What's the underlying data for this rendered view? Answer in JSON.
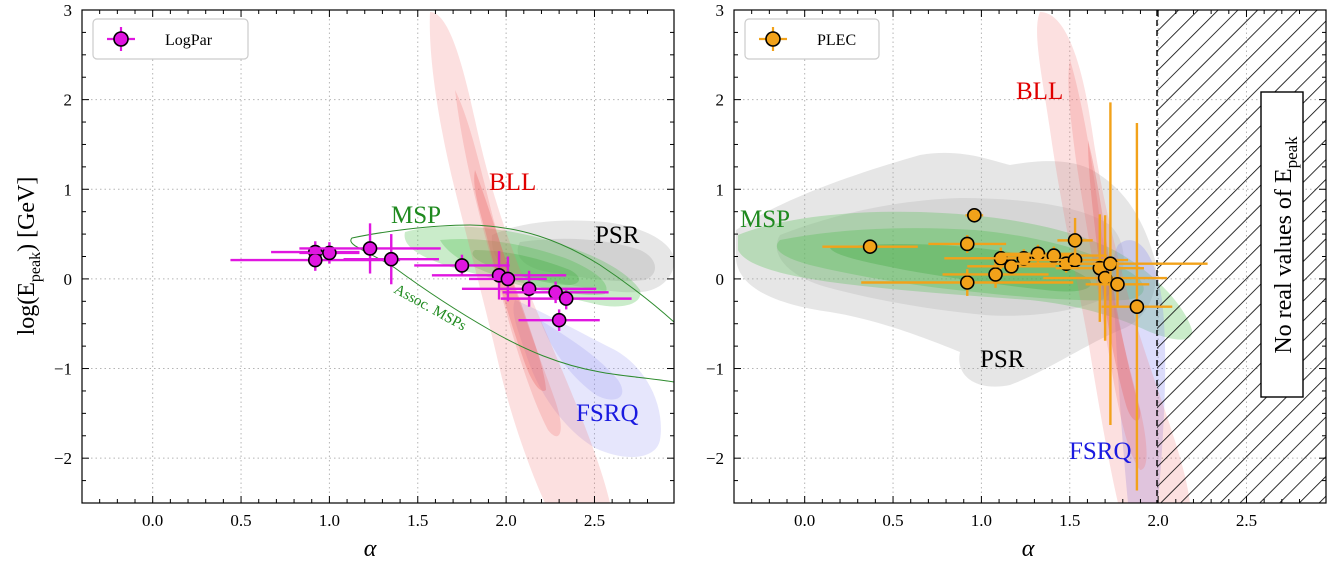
{
  "colors": {
    "logpar_marker": "#e016e0",
    "plec_marker": "#f2a21a",
    "bll": "#f07070",
    "fsrq": "#8c8cf2",
    "msp": "#4fbf4f",
    "msp_text": "#1f8a1f",
    "psr": "#a6a6a6",
    "assoc_msp_line": "#2e8b2e"
  },
  "chart_data": [
    {
      "type": "scatter",
      "xlabel": "α",
      "ylabel": "log(Epeak) [GeV]",
      "xlim": [
        -0.4,
        2.95
      ],
      "ylim": [
        -2.5,
        3
      ],
      "xticks": [
        "0.0",
        "0.5",
        "1.0",
        "1.5",
        "2.0",
        "2.5"
      ],
      "yticks": [
        "−2",
        "−1",
        "0",
        "1",
        "2",
        "3"
      ],
      "grid": true,
      "legend_position": "top-left",
      "series": [
        {
          "name": "LogPar",
          "points": [
            {
              "x": 0.92,
              "y": 0.3,
              "xerr": 0.25,
              "yerr": 0.12
            },
            {
              "x": 0.92,
              "y": 0.21,
              "xerr": 0.48,
              "yerr": 0.12
            },
            {
              "x": 1.0,
              "y": 0.29,
              "xerr": 0.17,
              "yerr": 0.12
            },
            {
              "x": 1.23,
              "y": 0.34,
              "xerr": 0.4,
              "yerr": 0.28
            },
            {
              "x": 1.35,
              "y": 0.22,
              "xerr": 0.27,
              "yerr": 0.28
            },
            {
              "x": 1.75,
              "y": 0.15,
              "xerr": 0.27,
              "yerr": 0.12
            },
            {
              "x": 1.96,
              "y": 0.04,
              "xerr": 0.38,
              "yerr": 0.27
            },
            {
              "x": 2.01,
              "y": 0.0,
              "xerr": 0.22,
              "yerr": 0.25
            },
            {
              "x": 2.13,
              "y": -0.11,
              "xerr": 0.38,
              "yerr": 0.2
            },
            {
              "x": 2.28,
              "y": -0.15,
              "xerr": 0.3,
              "yerr": 0.12
            },
            {
              "x": 2.34,
              "y": -0.22,
              "xerr": 0.37,
              "yerr": 0.12
            },
            {
              "x": 2.3,
              "y": -0.46,
              "xerr": 0.23,
              "yerr": 0.12
            }
          ]
        }
      ],
      "regions": [
        {
          "label": "BLL"
        },
        {
          "label": "MSP"
        },
        {
          "label": "PSR"
        },
        {
          "label": "FSRQ"
        },
        {
          "label": "Assoc. MSPs"
        }
      ]
    },
    {
      "type": "scatter",
      "xlabel": "α",
      "xlim": [
        -0.4,
        2.95
      ],
      "ylim": [
        -2.5,
        3
      ],
      "xticks": [
        "0.0",
        "0.5",
        "1.0",
        "1.5",
        "2.0",
        "2.5"
      ],
      "yticks": [
        "−2",
        "−1",
        "0",
        "1",
        "2",
        "3"
      ],
      "grid": true,
      "legend_position": "top-left",
      "series": [
        {
          "name": "PLEC",
          "points": [
            {
              "x": 0.37,
              "y": 0.36,
              "xerr": 0.27,
              "yerr": 0.06
            },
            {
              "x": 0.92,
              "y": 0.39,
              "xerr": 0.22,
              "yerr": 0.1
            },
            {
              "x": 0.92,
              "y": -0.04,
              "xerr": 0.6,
              "yerr": 0.15
            },
            {
              "x": 0.96,
              "y": 0.71,
              "xerr": 0.05,
              "yerr": 0.08
            },
            {
              "x": 1.08,
              "y": 0.05,
              "xerr": 0.3,
              "yerr": 0.15
            },
            {
              "x": 1.11,
              "y": 0.23,
              "xerr": 0.32,
              "yerr": 0.12
            },
            {
              "x": 1.17,
              "y": 0.14,
              "xerr": 0.25,
              "yerr": 0.1
            },
            {
              "x": 1.24,
              "y": 0.23,
              "xerr": 0.3,
              "yerr": 0.1
            },
            {
              "x": 1.32,
              "y": 0.28,
              "xerr": 0.22,
              "yerr": 0.1
            },
            {
              "x": 1.41,
              "y": 0.26,
              "xerr": 0.3,
              "yerr": 0.1
            },
            {
              "x": 1.48,
              "y": 0.17,
              "xerr": 0.25,
              "yerr": 0.1
            },
            {
              "x": 1.53,
              "y": 0.21,
              "xerr": 0.3,
              "yerr": 0.1
            },
            {
              "x": 1.53,
              "y": 0.43,
              "xerr": 0.1,
              "yerr": 0.25
            },
            {
              "x": 1.67,
              "y": 0.12,
              "xerr": 0.25,
              "yerr": 0.6
            },
            {
              "x": 1.7,
              "y": 0.01,
              "xerr": 0.35,
              "yerr": 0.7
            },
            {
              "x": 1.73,
              "y": 0.17,
              "xerr": 0.55,
              "yerr": 1.8
            },
            {
              "x": 1.77,
              "y": -0.06,
              "xerr": 0.18,
              "yerr": 0.25
            },
            {
              "x": 1.88,
              "y": -0.31,
              "xerr": 0.2,
              "yerr": 2.05
            }
          ]
        }
      ],
      "regions": [
        {
          "label": "BLL"
        },
        {
          "label": "MSP"
        },
        {
          "label": "PSR"
        },
        {
          "label": "FSRQ"
        }
      ],
      "excluded_region": {
        "x_from": 2.0,
        "label": "No real values of Epeak"
      }
    }
  ],
  "text": {
    "bll": "BLL",
    "msp": "MSP",
    "psr": "PSR",
    "fsrq": "FSRQ",
    "assoc_msps": "Assoc. MSPs",
    "ylabel_main": "log(E",
    "ylabel_sub": "peak",
    "ylabel_tail": ") [GeV]",
    "excluded_main": "No real values of E",
    "excluded_sub": "peak",
    "legend_left": "LogPar",
    "legend_right": "PLEC",
    "xlabel": "α"
  }
}
